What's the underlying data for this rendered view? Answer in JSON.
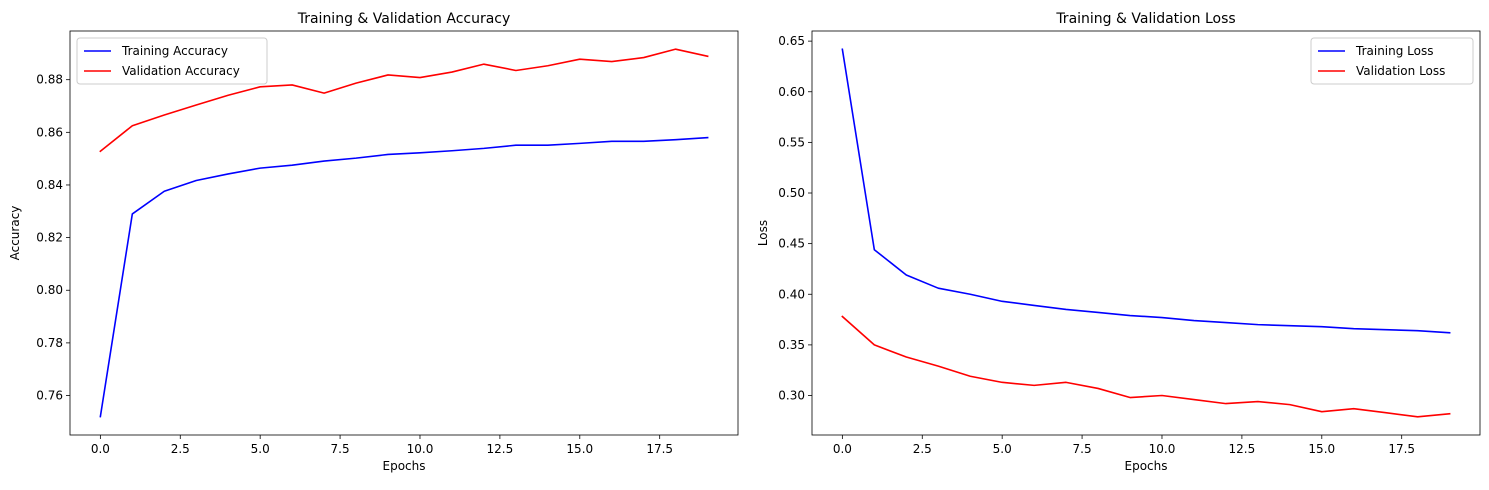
{
  "chart_data": [
    {
      "type": "line",
      "title": "Training & Validation Accuracy",
      "xlabel": "Epochs",
      "ylabel": "Accuracy",
      "xlim": [
        -0.95,
        19.95
      ],
      "ylim": [
        0.745,
        0.8985
      ],
      "xticks": [
        0.0,
        2.5,
        5.0,
        7.5,
        10.0,
        12.5,
        15.0,
        17.5
      ],
      "xtick_labels": [
        "0.0",
        "2.5",
        "5.0",
        "7.5",
        "10.0",
        "12.5",
        "15.0",
        "17.5"
      ],
      "yticks": [
        0.76,
        0.78,
        0.8,
        0.82,
        0.84,
        0.86,
        0.88
      ],
      "ytick_labels": [
        "0.76",
        "0.78",
        "0.80",
        "0.82",
        "0.84",
        "0.86",
        "0.88"
      ],
      "legend": "upper-left",
      "grid": false,
      "x": [
        0,
        1,
        2,
        3,
        4,
        5,
        6,
        7,
        8,
        9,
        10,
        11,
        12,
        13,
        14,
        15,
        16,
        17,
        18,
        19
      ],
      "series": [
        {
          "name": "Training Accuracy",
          "color": "#0000ff",
          "values": [
            0.752,
            0.829,
            0.8376,
            0.8417,
            0.8442,
            0.8464,
            0.8475,
            0.8491,
            0.8502,
            0.8516,
            0.8522,
            0.853,
            0.8539,
            0.8551,
            0.8551,
            0.8558,
            0.8566,
            0.8566,
            0.8572,
            0.858
          ]
        },
        {
          "name": "Validation Accuracy",
          "color": "#ff0000",
          "values": [
            0.8528,
            0.8625,
            0.8666,
            0.8704,
            0.8741,
            0.8773,
            0.878,
            0.8749,
            0.8787,
            0.8818,
            0.8808,
            0.8829,
            0.8859,
            0.8835,
            0.8853,
            0.8878,
            0.8869,
            0.8884,
            0.8916,
            0.8889
          ]
        }
      ]
    },
    {
      "type": "line",
      "title": "Training & Validation Loss",
      "xlabel": "Epochs",
      "ylabel": "Loss",
      "xlim": [
        -0.95,
        19.95
      ],
      "ylim": [
        0.261,
        0.66
      ],
      "xticks": [
        0.0,
        2.5,
        5.0,
        7.5,
        10.0,
        12.5,
        15.0,
        17.5
      ],
      "xtick_labels": [
        "0.0",
        "2.5",
        "5.0",
        "7.5",
        "10.0",
        "12.5",
        "15.0",
        "17.5"
      ],
      "yticks": [
        0.3,
        0.35,
        0.4,
        0.45,
        0.5,
        0.55,
        0.6,
        0.65
      ],
      "ytick_labels": [
        "0.30",
        "0.35",
        "0.40",
        "0.45",
        "0.50",
        "0.55",
        "0.60",
        "0.65"
      ],
      "legend": "upper-right",
      "grid": false,
      "x": [
        0,
        1,
        2,
        3,
        4,
        5,
        6,
        7,
        8,
        9,
        10,
        11,
        12,
        13,
        14,
        15,
        16,
        17,
        18,
        19
      ],
      "series": [
        {
          "name": "Training Loss",
          "color": "#0000ff",
          "values": [
            0.642,
            0.444,
            0.419,
            0.406,
            0.4,
            0.393,
            0.389,
            0.385,
            0.382,
            0.379,
            0.377,
            0.374,
            0.372,
            0.37,
            0.369,
            0.368,
            0.366,
            0.365,
            0.364,
            0.362
          ]
        },
        {
          "name": "Validation Loss",
          "color": "#ff0000",
          "values": [
            0.378,
            0.35,
            0.338,
            0.329,
            0.319,
            0.313,
            0.31,
            0.313,
            0.307,
            0.298,
            0.3,
            0.296,
            0.292,
            0.294,
            0.291,
            0.284,
            0.287,
            0.283,
            0.279,
            0.282
          ]
        }
      ]
    }
  ]
}
